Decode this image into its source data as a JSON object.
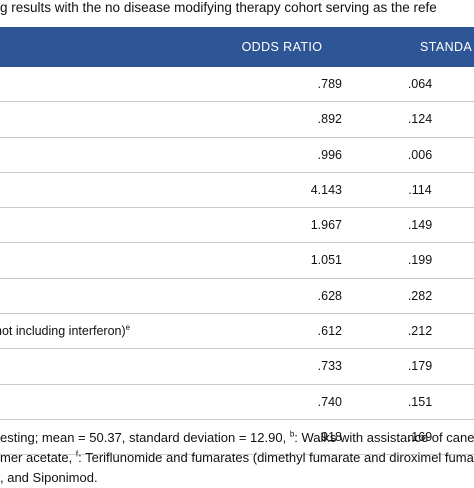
{
  "caption": "g results with the no disease modifying therapy cohort serving as the refe",
  "columns": {
    "odds_ratio": "ODDS RATIO",
    "standard_error": "STANDA"
  },
  "rows": [
    {
      "label": "",
      "odds_ratio": ".789",
      "standard_error": ".064"
    },
    {
      "label": "",
      "odds_ratio": ".892",
      "standard_error": ".124"
    },
    {
      "label": "",
      "odds_ratio": ".996",
      "standard_error": ".006"
    },
    {
      "label": "",
      "odds_ratio": "4.143",
      "standard_error": ".114"
    },
    {
      "label": "",
      "odds_ratio": "1.967",
      "standard_error": ".149"
    },
    {
      "label": "",
      "odds_ratio": "1.051",
      "standard_error": ".199"
    },
    {
      "label": "",
      "odds_ratio": ".628",
      "standard_error": ".282"
    },
    {
      "label": "not including interferon)",
      "label_sup": "e",
      "odds_ratio": ".612",
      "standard_error": ".212"
    },
    {
      "label": "",
      "odds_ratio": ".733",
      "standard_error": ".179"
    },
    {
      "label": "",
      "odds_ratio": ".740",
      "standard_error": ".151"
    },
    {
      "label": "",
      "odds_ratio": ".918",
      "standard_error": ".169"
    }
  ],
  "footnotes": {
    "line1_a": "esting; mean = 50.37, standard deviation = 12.90, ",
    "line1_sup": "b",
    "line1_b": ": Walks with assistance of cane or",
    "line2_a": "mer acetate, ",
    "line2_sup": "f",
    "line2_b": ": Teriflunomide and fumarates (dimethyl fumarate and diroximel fumarate)",
    "line3": ", and Siponimod."
  },
  "colors": {
    "header_bg": "#2e5596",
    "header_text": "#ffffff",
    "row_divider": "#c9c9c9"
  }
}
